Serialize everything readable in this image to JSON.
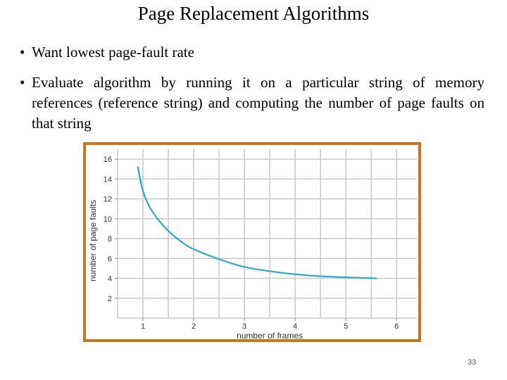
{
  "slide": {
    "title": "Page Replacement Algorithms",
    "bullets": [
      "Want lowest page-fault rate",
      "Evaluate algorithm by running it on a particular string of memory references (reference string) and computing the number of page faults on that string"
    ],
    "bullet_symbol": "•",
    "page_number": "33"
  },
  "colors": {
    "frame_border": "#c8761e",
    "curve": "#2ea6d1",
    "grid": "#c8c8c8",
    "axis_text": "#333333"
  },
  "chart_data": {
    "type": "line",
    "xlabel": "number of frames",
    "ylabel": "number of page faults",
    "x_ticks": [
      1,
      2,
      3,
      4,
      5,
      6
    ],
    "y_ticks": [
      2,
      4,
      6,
      8,
      10,
      12,
      14,
      16
    ],
    "xlim": [
      0.5,
      6.4
    ],
    "ylim": [
      0,
      17
    ],
    "grid": true,
    "series": [
      {
        "x": [
          0.9,
          1.0,
          1.2,
          1.5,
          1.8,
          2.0,
          2.5,
          3.0,
          3.5,
          4.0,
          4.5,
          5.0,
          5.6
        ],
        "values": [
          15.2,
          12.5,
          10.5,
          8.7,
          7.5,
          6.9,
          5.9,
          5.1,
          4.7,
          4.4,
          4.2,
          4.1,
          4.0
        ]
      }
    ]
  }
}
